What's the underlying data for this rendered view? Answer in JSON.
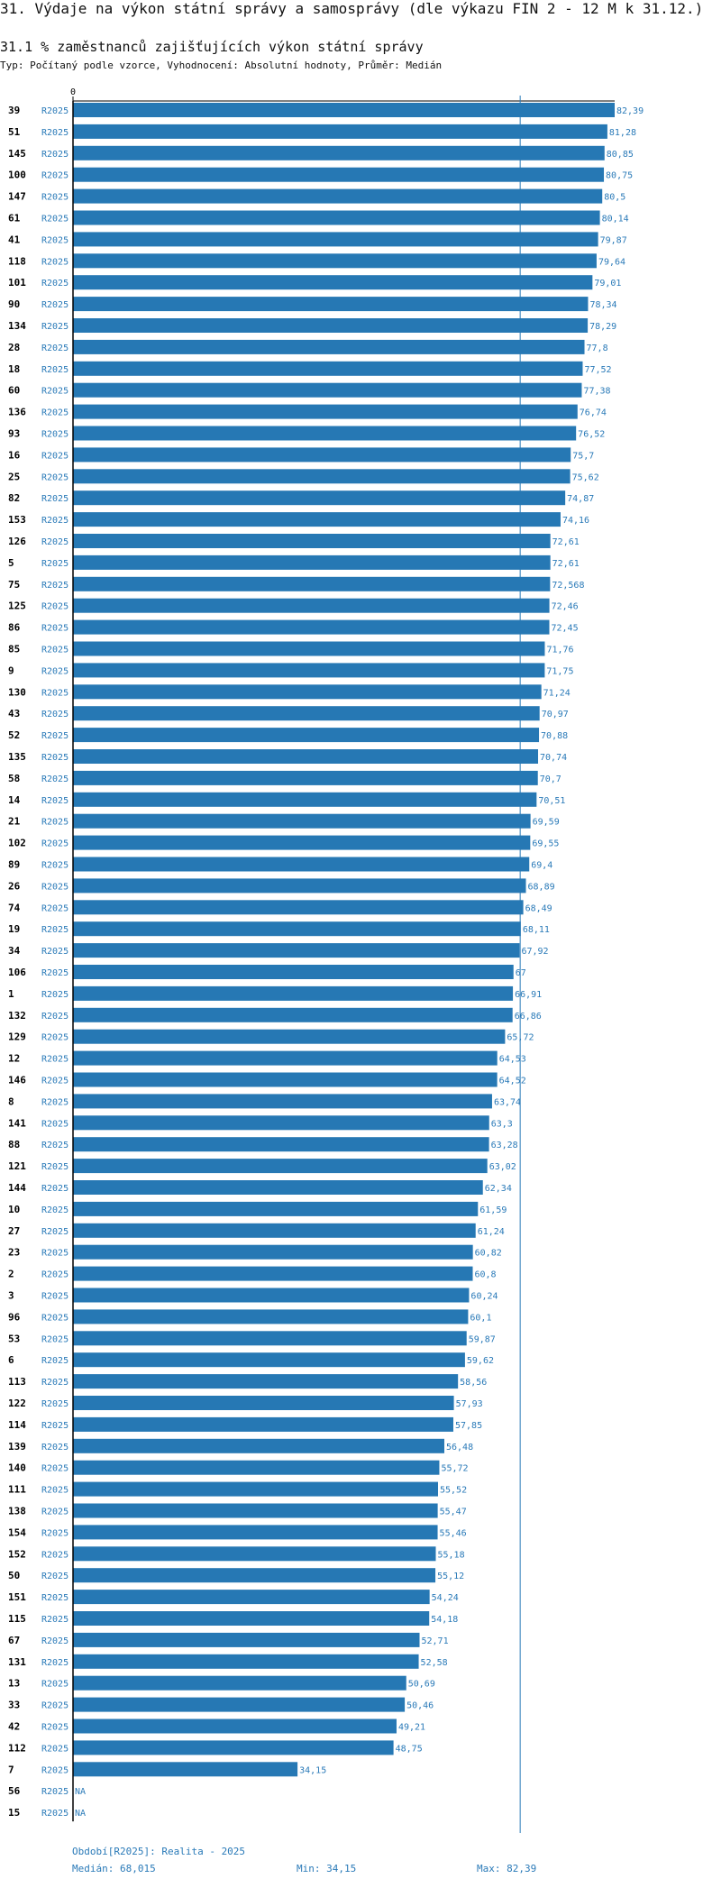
{
  "header": {
    "title": "31. Výdaje na výkon státní správy a samosprávy (dle výkazu FIN 2 - 12 M k 31.12.)",
    "subtitle": "31.1 % zaměstnanců zajišťujících výkon státní správy",
    "typeline": "Typ: Počítaný podle vzorce, Vyhodnocení: Absolutní hodnoty, Průměr: Medián"
  },
  "colors": {
    "bar": "#2678b4",
    "value_label": "#2a7ab8",
    "axis": "#000000",
    "median_line": "#2a7ab8"
  },
  "chart_data": {
    "type": "bar",
    "orientation": "horizontal",
    "xlim": [
      0,
      82.39
    ],
    "x_tick_label": "0",
    "median": 68.015,
    "rows": [
      {
        "id": "39",
        "period": "R2025",
        "value": 82.39,
        "label": "82,39"
      },
      {
        "id": "51",
        "period": "R2025",
        "value": 81.28,
        "label": "81,28"
      },
      {
        "id": "145",
        "period": "R2025",
        "value": 80.85,
        "label": "80,85"
      },
      {
        "id": "100",
        "period": "R2025",
        "value": 80.75,
        "label": "80,75"
      },
      {
        "id": "147",
        "period": "R2025",
        "value": 80.5,
        "label": "80,5"
      },
      {
        "id": "61",
        "period": "R2025",
        "value": 80.14,
        "label": "80,14"
      },
      {
        "id": "41",
        "period": "R2025",
        "value": 79.87,
        "label": "79,87"
      },
      {
        "id": "118",
        "period": "R2025",
        "value": 79.64,
        "label": "79,64"
      },
      {
        "id": "101",
        "period": "R2025",
        "value": 79.01,
        "label": "79,01"
      },
      {
        "id": "90",
        "period": "R2025",
        "value": 78.34,
        "label": "78,34"
      },
      {
        "id": "134",
        "period": "R2025",
        "value": 78.29,
        "label": "78,29"
      },
      {
        "id": "28",
        "period": "R2025",
        "value": 77.8,
        "label": "77,8"
      },
      {
        "id": "18",
        "period": "R2025",
        "value": 77.52,
        "label": "77,52"
      },
      {
        "id": "60",
        "period": "R2025",
        "value": 77.38,
        "label": "77,38"
      },
      {
        "id": "136",
        "period": "R2025",
        "value": 76.74,
        "label": "76,74"
      },
      {
        "id": "93",
        "period": "R2025",
        "value": 76.52,
        "label": "76,52"
      },
      {
        "id": "16",
        "period": "R2025",
        "value": 75.7,
        "label": "75,7"
      },
      {
        "id": "25",
        "period": "R2025",
        "value": 75.62,
        "label": "75,62"
      },
      {
        "id": "82",
        "period": "R2025",
        "value": 74.87,
        "label": "74,87"
      },
      {
        "id": "153",
        "period": "R2025",
        "value": 74.16,
        "label": "74,16"
      },
      {
        "id": "126",
        "period": "R2025",
        "value": 72.61,
        "label": "72,61"
      },
      {
        "id": "5",
        "period": "R2025",
        "value": 72.61,
        "label": "72,61"
      },
      {
        "id": "75",
        "period": "R2025",
        "value": 72.568,
        "label": "72,568"
      },
      {
        "id": "125",
        "period": "R2025",
        "value": 72.46,
        "label": "72,46"
      },
      {
        "id": "86",
        "period": "R2025",
        "value": 72.45,
        "label": "72,45"
      },
      {
        "id": "85",
        "period": "R2025",
        "value": 71.76,
        "label": "71,76"
      },
      {
        "id": "9",
        "period": "R2025",
        "value": 71.75,
        "label": "71,75"
      },
      {
        "id": "130",
        "period": "R2025",
        "value": 71.24,
        "label": "71,24"
      },
      {
        "id": "43",
        "period": "R2025",
        "value": 70.97,
        "label": "70,97"
      },
      {
        "id": "52",
        "period": "R2025",
        "value": 70.88,
        "label": "70,88"
      },
      {
        "id": "135",
        "period": "R2025",
        "value": 70.74,
        "label": "70,74"
      },
      {
        "id": "58",
        "period": "R2025",
        "value": 70.7,
        "label": "70,7"
      },
      {
        "id": "14",
        "period": "R2025",
        "value": 70.51,
        "label": "70,51"
      },
      {
        "id": "21",
        "period": "R2025",
        "value": 69.59,
        "label": "69,59"
      },
      {
        "id": "102",
        "period": "R2025",
        "value": 69.55,
        "label": "69,55"
      },
      {
        "id": "89",
        "period": "R2025",
        "value": 69.4,
        "label": "69,4"
      },
      {
        "id": "26",
        "period": "R2025",
        "value": 68.89,
        "label": "68,89"
      },
      {
        "id": "74",
        "period": "R2025",
        "value": 68.49,
        "label": "68,49"
      },
      {
        "id": "19",
        "period": "R2025",
        "value": 68.11,
        "label": "68,11"
      },
      {
        "id": "34",
        "period": "R2025",
        "value": 67.92,
        "label": "67,92"
      },
      {
        "id": "106",
        "period": "R2025",
        "value": 67,
        "label": "67"
      },
      {
        "id": "1",
        "period": "R2025",
        "value": 66.91,
        "label": "66,91"
      },
      {
        "id": "132",
        "period": "R2025",
        "value": 66.86,
        "label": "66,86"
      },
      {
        "id": "129",
        "period": "R2025",
        "value": 65.72,
        "label": "65,72"
      },
      {
        "id": "12",
        "period": "R2025",
        "value": 64.53,
        "label": "64,53"
      },
      {
        "id": "146",
        "period": "R2025",
        "value": 64.52,
        "label": "64,52"
      },
      {
        "id": "8",
        "period": "R2025",
        "value": 63.74,
        "label": "63,74"
      },
      {
        "id": "141",
        "period": "R2025",
        "value": 63.3,
        "label": "63,3"
      },
      {
        "id": "88",
        "period": "R2025",
        "value": 63.28,
        "label": "63,28"
      },
      {
        "id": "121",
        "period": "R2025",
        "value": 63.02,
        "label": "63,02"
      },
      {
        "id": "144",
        "period": "R2025",
        "value": 62.34,
        "label": "62,34"
      },
      {
        "id": "10",
        "period": "R2025",
        "value": 61.59,
        "label": "61,59"
      },
      {
        "id": "27",
        "period": "R2025",
        "value": 61.24,
        "label": "61,24"
      },
      {
        "id": "23",
        "period": "R2025",
        "value": 60.82,
        "label": "60,82"
      },
      {
        "id": "2",
        "period": "R2025",
        "value": 60.8,
        "label": "60,8"
      },
      {
        "id": "3",
        "period": "R2025",
        "value": 60.24,
        "label": "60,24"
      },
      {
        "id": "96",
        "period": "R2025",
        "value": 60.1,
        "label": "60,1"
      },
      {
        "id": "53",
        "period": "R2025",
        "value": 59.87,
        "label": "59,87"
      },
      {
        "id": "6",
        "period": "R2025",
        "value": 59.62,
        "label": "59,62"
      },
      {
        "id": "113",
        "period": "R2025",
        "value": 58.56,
        "label": "58,56"
      },
      {
        "id": "122",
        "period": "R2025",
        "value": 57.93,
        "label": "57,93"
      },
      {
        "id": "114",
        "period": "R2025",
        "value": 57.85,
        "label": "57,85"
      },
      {
        "id": "139",
        "period": "R2025",
        "value": 56.48,
        "label": "56,48"
      },
      {
        "id": "140",
        "period": "R2025",
        "value": 55.72,
        "label": "55,72"
      },
      {
        "id": "111",
        "period": "R2025",
        "value": 55.52,
        "label": "55,52"
      },
      {
        "id": "138",
        "period": "R2025",
        "value": 55.47,
        "label": "55,47"
      },
      {
        "id": "154",
        "period": "R2025",
        "value": 55.46,
        "label": "55,46"
      },
      {
        "id": "152",
        "period": "R2025",
        "value": 55.18,
        "label": "55,18"
      },
      {
        "id": "50",
        "period": "R2025",
        "value": 55.12,
        "label": "55,12"
      },
      {
        "id": "151",
        "period": "R2025",
        "value": 54.24,
        "label": "54,24"
      },
      {
        "id": "115",
        "period": "R2025",
        "value": 54.18,
        "label": "54,18"
      },
      {
        "id": "67",
        "period": "R2025",
        "value": 52.71,
        "label": "52,71"
      },
      {
        "id": "131",
        "period": "R2025",
        "value": 52.58,
        "label": "52,58"
      },
      {
        "id": "13",
        "period": "R2025",
        "value": 50.69,
        "label": "50,69"
      },
      {
        "id": "33",
        "period": "R2025",
        "value": 50.46,
        "label": "50,46"
      },
      {
        "id": "42",
        "period": "R2025",
        "value": 49.21,
        "label": "49,21"
      },
      {
        "id": "112",
        "period": "R2025",
        "value": 48.75,
        "label": "48,75"
      },
      {
        "id": "7",
        "period": "R2025",
        "value": 34.15,
        "label": "34,15"
      },
      {
        "id": "56",
        "period": "R2025",
        "value": null,
        "label": "NA"
      },
      {
        "id": "15",
        "period": "R2025",
        "value": null,
        "label": "NA"
      }
    ]
  },
  "footer": {
    "period": "Období[R2025]: Realita - 2025",
    "median": "Medián: 68,015",
    "min": "Min: 34,15",
    "max": "Max: 82,39"
  }
}
